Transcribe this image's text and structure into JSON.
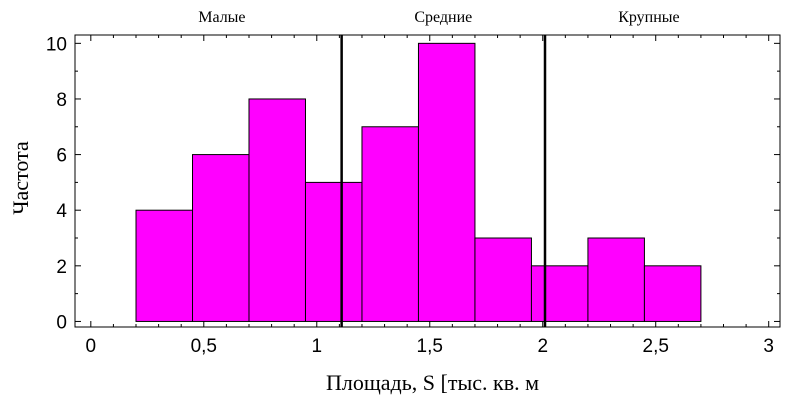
{
  "chart_data": {
    "type": "bar",
    "subtype": "histogram",
    "bins": [
      {
        "from": 0.2,
        "to": 0.45,
        "value": 4
      },
      {
        "from": 0.45,
        "to": 0.7,
        "value": 6
      },
      {
        "from": 0.7,
        "to": 0.95,
        "value": 8
      },
      {
        "from": 0.95,
        "to": 1.2,
        "value": 5
      },
      {
        "from": 1.2,
        "to": 1.45,
        "value": 7
      },
      {
        "from": 1.45,
        "to": 1.7,
        "value": 10
      },
      {
        "from": 1.7,
        "to": 1.95,
        "value": 3
      },
      {
        "from": 1.95,
        "to": 2.2,
        "value": 2
      },
      {
        "from": 2.2,
        "to": 2.45,
        "value": 3
      },
      {
        "from": 2.45,
        "to": 2.7,
        "value": 2
      }
    ],
    "xlabel": "Площадь, S [тыс. кв. м",
    "ylabel": "Частота",
    "xlim": [
      -0.07,
      3.05
    ],
    "ylim": [
      -0.2,
      10.3
    ],
    "xticks": [
      0,
      0.5,
      1,
      1.5,
      2,
      2.5,
      3
    ],
    "xtick_labels": [
      "0",
      "0,5",
      "1",
      "1,5",
      "2",
      "2,5",
      "3"
    ],
    "yticks": [
      0,
      2,
      4,
      6,
      8,
      10
    ],
    "ytick_labels": [
      "0",
      "2",
      "4",
      "6",
      "8",
      "10"
    ],
    "vlines": [
      1.11,
      2.01
    ],
    "regions": [
      {
        "label": "Малые",
        "x_center": 0.58
      },
      {
        "label": "Средние",
        "x_center": 1.56
      },
      {
        "label": "Крупные",
        "x_center": 2.47
      }
    ],
    "bar_color": "#ff00ff",
    "edge_color": "#000000",
    "grid": false
  }
}
